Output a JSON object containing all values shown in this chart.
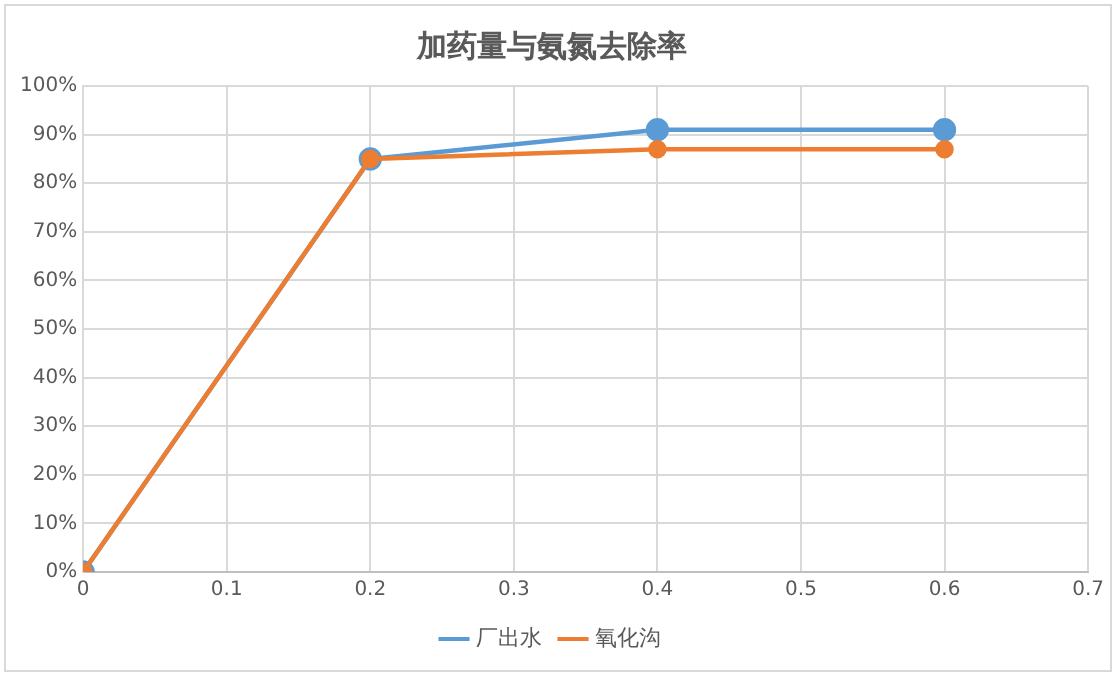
{
  "chart_data": {
    "type": "line",
    "title": "加药量与氨氮去除率",
    "x": [
      0,
      0.2,
      0.4,
      0.6
    ],
    "series": [
      {
        "name": "厂出水",
        "color": "#5b9bd5",
        "values": [
          0,
          85,
          91,
          91
        ]
      },
      {
        "name": "氧化沟",
        "color": "#ed7d31",
        "values": [
          0,
          85,
          87,
          87
        ]
      }
    ],
    "xlim": [
      0,
      0.7
    ],
    "xticks": [
      0,
      0.1,
      0.2,
      0.3,
      0.4,
      0.5,
      0.6,
      0.7
    ],
    "ylim": [
      0,
      100
    ],
    "yticks": [
      {
        "value": 0,
        "label": "0%"
      },
      {
        "value": 10,
        "label": "10%"
      },
      {
        "value": 20,
        "label": "20%"
      },
      {
        "value": 30,
        "label": "30%"
      },
      {
        "value": 40,
        "label": "40%"
      },
      {
        "value": 50,
        "label": "50%"
      },
      {
        "value": 60,
        "label": "60%"
      },
      {
        "value": 70,
        "label": "70%"
      },
      {
        "value": 80,
        "label": "80%"
      },
      {
        "value": 90,
        "label": "90%"
      },
      {
        "value": 100,
        "label": "100%"
      }
    ],
    "grid": true,
    "legend": "bottom",
    "marker": "circle",
    "line_style": "solid"
  }
}
